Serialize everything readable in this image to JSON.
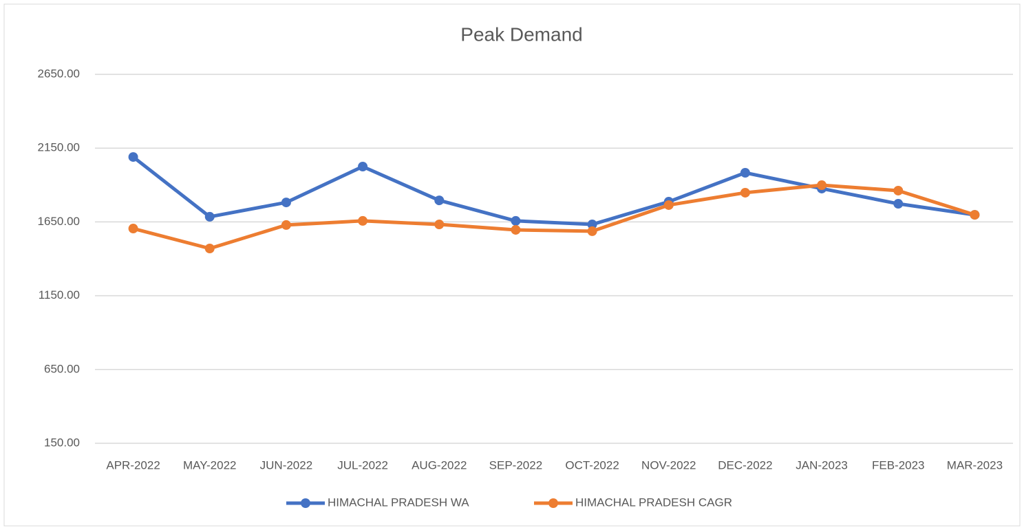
{
  "chart_data": {
    "type": "line",
    "title": "Peak Demand",
    "categories": [
      "APR-2022",
      "MAY-2022",
      "JUN-2022",
      "JUL-2022",
      "AUG-2022",
      "SEP-2022",
      "OCT-2022",
      "NOV-2022",
      "DEC-2022",
      "JAN-2023",
      "FEB-2023",
      "MAR-2023"
    ],
    "series": [
      {
        "name": "HIMACHAL PRADESH WA",
        "color": "#4472c4",
        "values": [
          2090,
          1685,
          1782,
          2025,
          1796,
          1657,
          1633,
          1787,
          1983,
          1876,
          1773,
          1698
        ]
      },
      {
        "name": "HIMACHAL PRADESH CAGR",
        "color": "#ed7d31",
        "values": [
          1605,
          1470,
          1629,
          1657,
          1633,
          1596,
          1587,
          1764,
          1848,
          1899,
          1862,
          1698
        ]
      }
    ],
    "ylim": [
      150,
      2650
    ],
    "yticks": [
      {
        "value": 150,
        "label": "150.00"
      },
      {
        "value": 650,
        "label": "650.00"
      },
      {
        "value": 1150,
        "label": "1150.00"
      },
      {
        "value": 1650,
        "label": "1650.00"
      },
      {
        "value": 2150,
        "label": "2150.00"
      },
      {
        "value": 2650,
        "label": "2650.00"
      }
    ],
    "grid": true,
    "legend": "bottom"
  }
}
